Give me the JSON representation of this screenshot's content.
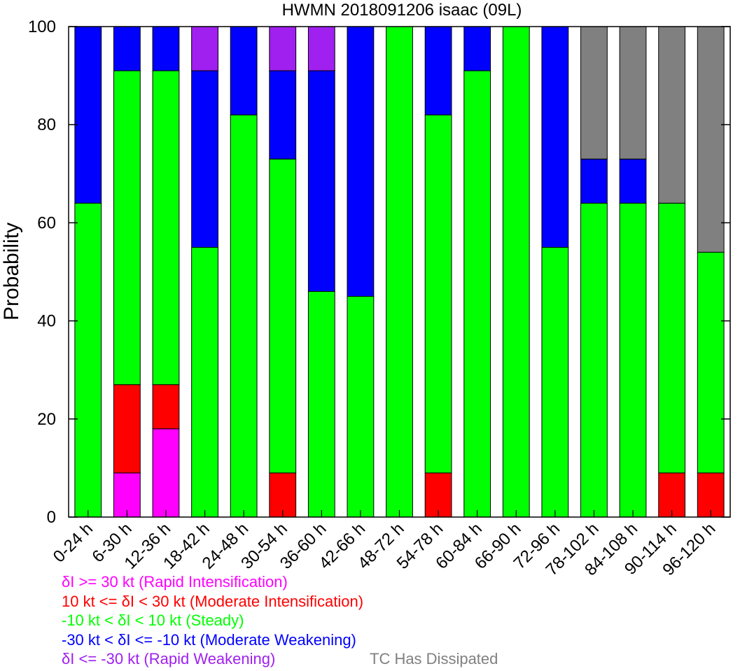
{
  "chart_data": {
    "type": "bar",
    "stacked": true,
    "title": "HWMN 2018091206 isaac (09L)",
    "xlabel": "",
    "ylabel": "Probability",
    "ylim": [
      0,
      100
    ],
    "yticks": [
      0,
      20,
      40,
      60,
      80,
      100
    ],
    "grid": false,
    "categories": [
      "0-24 h",
      "6-30 h",
      "12-36 h",
      "18-42 h",
      "24-48 h",
      "30-54 h",
      "36-60 h",
      "42-66 h",
      "48-72 h",
      "54-78 h",
      "60-84 h",
      "66-90 h",
      "72-96 h",
      "78-102 h",
      "84-108 h",
      "90-114 h",
      "96-120 h"
    ],
    "series": [
      {
        "name": "δI >= 30 kt (Rapid Intensification)",
        "color": "#ff00ff",
        "values": [
          0,
          9,
          18,
          0,
          0,
          0,
          0,
          0,
          0,
          0,
          0,
          0,
          0,
          0,
          0,
          0,
          0
        ]
      },
      {
        "name": "10 kt <= δI < 30 kt (Moderate Intensification)",
        "color": "#ff0000",
        "values": [
          0,
          18,
          9,
          0,
          0,
          9,
          0,
          0,
          0,
          9,
          0,
          0,
          0,
          0,
          0,
          9,
          9
        ]
      },
      {
        "name": "-10 kt < δI < 10 kt (Steady)",
        "color": "#00ff00",
        "values": [
          64,
          64,
          64,
          55,
          82,
          64,
          46,
          45,
          100,
          73,
          91,
          100,
          55,
          64,
          64,
          55,
          45
        ]
      },
      {
        "name": "-30 kt < δI <= -10 kt (Moderate Weakening)",
        "color": "#0000ff",
        "values": [
          36,
          9,
          9,
          36,
          18,
          18,
          45,
          55,
          0,
          18,
          9,
          0,
          45,
          9,
          9,
          0,
          0
        ]
      },
      {
        "name": "δI <= -30 kt (Rapid Weakening)",
        "color": "#a020f0",
        "values": [
          0,
          0,
          0,
          9,
          0,
          9,
          9,
          0,
          0,
          0,
          0,
          0,
          0,
          0,
          0,
          0,
          0
        ]
      },
      {
        "name": "TC Has Dissipated",
        "color": "#808080",
        "values": [
          0,
          0,
          0,
          0,
          0,
          0,
          0,
          0,
          0,
          0,
          0,
          0,
          0,
          27,
          27,
          36,
          46
        ]
      }
    ],
    "legend": [
      {
        "text": "δI >= 30 kt (Rapid Intensification)",
        "color": "#ff00ff"
      },
      {
        "text": "10 kt <= δI < 30 kt (Moderate Intensification)",
        "color": "#ff0000"
      },
      {
        "text": "-10 kt < δI < 10 kt (Steady)",
        "color": "#00ff00"
      },
      {
        "text": "-30 kt < δI <= -10 kt (Moderate Weakening)",
        "color": "#0000ff"
      },
      {
        "text": "δI <= -30 kt (Rapid Weakening)",
        "color": "#a020f0"
      },
      {
        "text": "TC Has Dissipated",
        "color": "#808080"
      }
    ],
    "legend_placement": "bottom-left"
  }
}
